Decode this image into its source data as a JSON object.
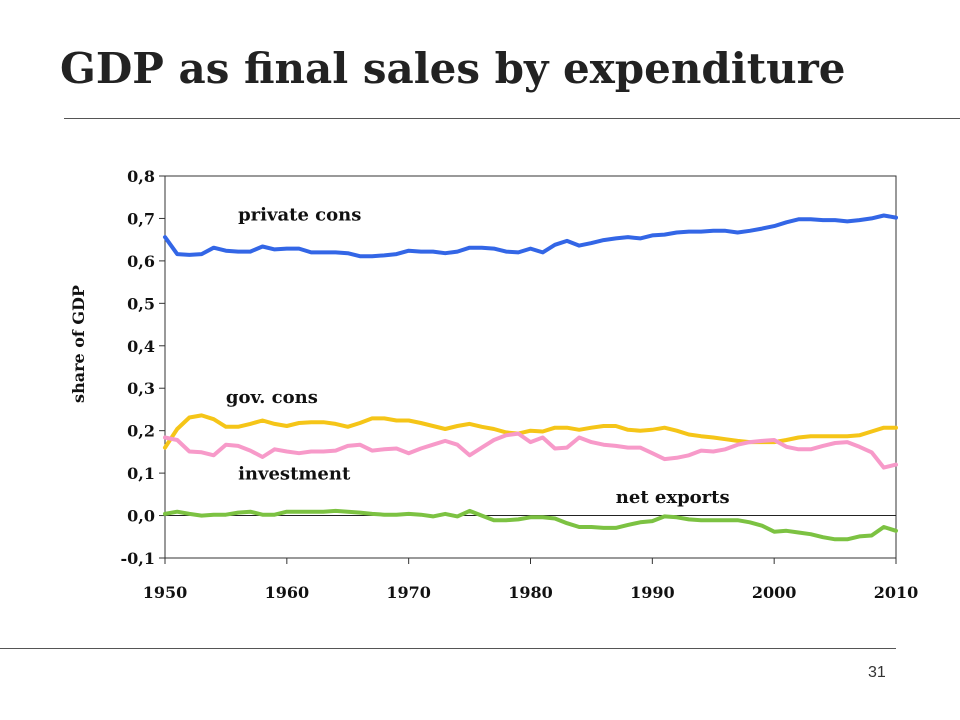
{
  "slide": {
    "title": "GDP as final sales by expenditure",
    "page_number": "31"
  },
  "colors": {
    "private_cons": "#3366e6",
    "gov_cons": "#f5c518",
    "investment": "#f79ac9",
    "net_exports": "#7cc242"
  },
  "chart_data": {
    "type": "line",
    "title": "",
    "xlabel": "",
    "ylabel": "share of GDP",
    "xlim": [
      1950,
      2010
    ],
    "ylim": [
      -0.1,
      0.8
    ],
    "x_ticks": [
      "1950",
      "1960",
      "1970",
      "1980",
      "1990",
      "2000",
      "2010"
    ],
    "y_ticks": [
      "0,8",
      "0,7",
      "0,6",
      "0,5",
      "0,4",
      "0,3",
      "0,2",
      "0,1",
      "0,0",
      "-0,1"
    ],
    "grid": false,
    "x": [
      1950,
      1951,
      1952,
      1953,
      1954,
      1955,
      1956,
      1957,
      1958,
      1959,
      1960,
      1961,
      1962,
      1963,
      1964,
      1965,
      1966,
      1967,
      1968,
      1969,
      1970,
      1971,
      1972,
      1973,
      1974,
      1975,
      1976,
      1977,
      1978,
      1979,
      1980,
      1981,
      1982,
      1983,
      1984,
      1985,
      1986,
      1987,
      1988,
      1989,
      1990,
      1991,
      1992,
      1993,
      1994,
      1995,
      1996,
      1997,
      1998,
      1999,
      2000,
      2001,
      2002,
      2003,
      2004,
      2005,
      2006,
      2007,
      2008,
      2009,
      2010
    ],
    "series": [
      {
        "name": "private cons",
        "values": [
          0.656,
          0.616,
          0.614,
          0.616,
          0.631,
          0.624,
          0.622,
          0.622,
          0.634,
          0.627,
          0.629,
          0.629,
          0.62,
          0.62,
          0.62,
          0.618,
          0.611,
          0.611,
          0.613,
          0.616,
          0.624,
          0.622,
          0.622,
          0.618,
          0.622,
          0.631,
          0.631,
          0.629,
          0.622,
          0.62,
          0.629,
          0.62,
          0.638,
          0.647,
          0.636,
          0.642,
          0.649,
          0.653,
          0.656,
          0.653,
          0.66,
          0.662,
          0.667,
          0.669,
          0.669,
          0.671,
          0.671,
          0.667,
          0.671,
          0.676,
          0.682,
          0.691,
          0.698,
          0.698,
          0.696,
          0.696,
          0.693,
          0.696,
          0.7,
          0.707,
          0.702
        ]
      },
      {
        "name": "gov. cons",
        "values": [
          0.16,
          0.204,
          0.231,
          0.236,
          0.227,
          0.209,
          0.209,
          0.216,
          0.224,
          0.216,
          0.211,
          0.218,
          0.22,
          0.22,
          0.216,
          0.209,
          0.218,
          0.229,
          0.229,
          0.224,
          0.224,
          0.218,
          0.211,
          0.204,
          0.211,
          0.216,
          0.209,
          0.204,
          0.196,
          0.193,
          0.2,
          0.198,
          0.207,
          0.207,
          0.202,
          0.207,
          0.211,
          0.211,
          0.202,
          0.2,
          0.202,
          0.207,
          0.2,
          0.191,
          0.187,
          0.184,
          0.18,
          0.176,
          0.173,
          0.173,
          0.173,
          0.178,
          0.184,
          0.187,
          0.187,
          0.187,
          0.187,
          0.189,
          0.198,
          0.207,
          0.207
        ]
      },
      {
        "name": "investment",
        "values": [
          0.184,
          0.178,
          0.151,
          0.149,
          0.142,
          0.167,
          0.164,
          0.153,
          0.138,
          0.156,
          0.151,
          0.147,
          0.151,
          0.151,
          0.153,
          0.164,
          0.167,
          0.153,
          0.156,
          0.158,
          0.147,
          0.158,
          0.167,
          0.176,
          0.167,
          0.142,
          0.16,
          0.178,
          0.189,
          0.193,
          0.173,
          0.184,
          0.158,
          0.16,
          0.184,
          0.173,
          0.167,
          0.164,
          0.16,
          0.16,
          0.147,
          0.133,
          0.136,
          0.142,
          0.153,
          0.151,
          0.156,
          0.167,
          0.173,
          0.176,
          0.178,
          0.162,
          0.156,
          0.156,
          0.164,
          0.171,
          0.173,
          0.162,
          0.149,
          0.113,
          0.12
        ]
      },
      {
        "name": "net exports",
        "values": [
          0.004,
          0.009,
          0.004,
          0.0,
          0.002,
          0.002,
          0.007,
          0.009,
          0.002,
          0.002,
          0.009,
          0.009,
          0.009,
          0.009,
          0.011,
          0.009,
          0.007,
          0.004,
          0.002,
          0.002,
          0.004,
          0.002,
          -0.002,
          0.004,
          -0.002,
          0.011,
          0.0,
          -0.011,
          -0.011,
          -0.009,
          -0.004,
          -0.004,
          -0.007,
          -0.018,
          -0.027,
          -0.027,
          -0.029,
          -0.029,
          -0.022,
          -0.016,
          -0.013,
          -0.002,
          -0.004,
          -0.009,
          -0.011,
          -0.011,
          -0.011,
          -0.011,
          -0.016,
          -0.024,
          -0.038,
          -0.036,
          -0.04,
          -0.044,
          -0.051,
          -0.056,
          -0.056,
          -0.049,
          -0.047,
          -0.027,
          -0.036
        ]
      }
    ],
    "annotations": [
      {
        "text": "private cons",
        "x": 1956,
        "y": 0.695
      },
      {
        "text": "gov. cons",
        "x": 1955,
        "y": 0.265
      },
      {
        "text": "investment",
        "x": 1956,
        "y": 0.085
      },
      {
        "text": "net exports",
        "x": 1987,
        "y": 0.03
      }
    ]
  }
}
